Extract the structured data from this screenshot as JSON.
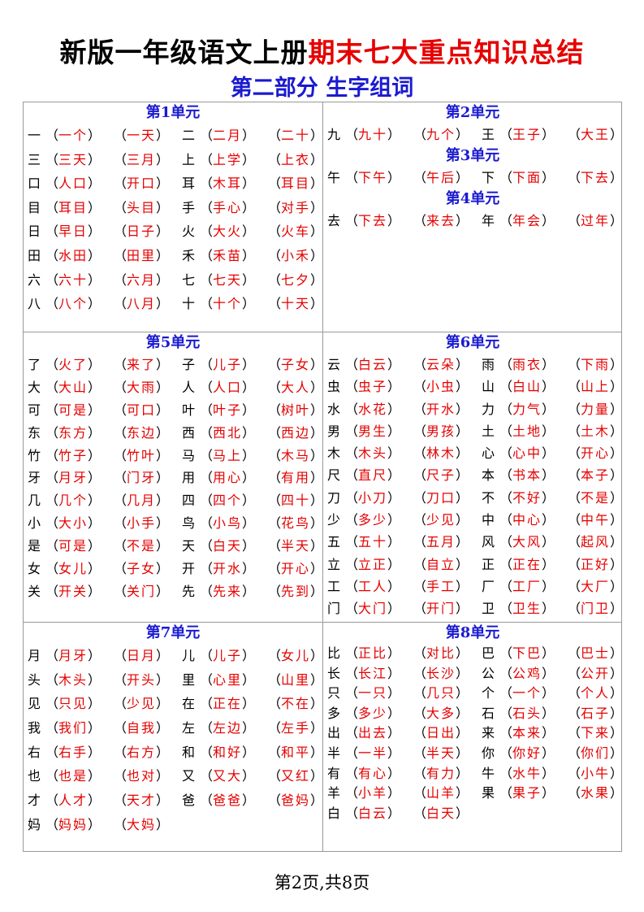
{
  "header": {
    "title_black": "新版一年级语文上册",
    "title_red": "期末七大重点知识总结",
    "subtitle": "第二部分 生字组词"
  },
  "units": [
    {
      "title": "第1单元",
      "entries": [
        {
          "c": "一",
          "w": [
            "一个",
            "一天"
          ]
        },
        {
          "c": "二",
          "w": [
            "二月",
            "二十"
          ]
        },
        {
          "c": "三",
          "w": [
            "三天",
            "三月"
          ]
        },
        {
          "c": "上",
          "w": [
            "上学",
            "上衣"
          ]
        },
        {
          "c": "口",
          "w": [
            "人口",
            "开口"
          ]
        },
        {
          "c": "耳",
          "w": [
            "木耳",
            "耳目"
          ]
        },
        {
          "c": "目",
          "w": [
            "耳目",
            "头目"
          ]
        },
        {
          "c": "手",
          "w": [
            "手心",
            "对手"
          ]
        },
        {
          "c": "日",
          "w": [
            "早日",
            "日子"
          ]
        },
        {
          "c": "火",
          "w": [
            "大火",
            "火车"
          ]
        },
        {
          "c": "田",
          "w": [
            "水田",
            "田里"
          ]
        },
        {
          "c": "禾",
          "w": [
            "禾苗",
            "小禾"
          ]
        },
        {
          "c": "六",
          "w": [
            "六十",
            "六月"
          ]
        },
        {
          "c": "七",
          "w": [
            "七天",
            "七夕"
          ]
        },
        {
          "c": "八",
          "w": [
            "八个",
            "八月"
          ]
        },
        {
          "c": "十",
          "w": [
            "十个",
            "十天"
          ]
        }
      ]
    },
    {
      "title": "第2单元",
      "entries": [
        {
          "c": "九",
          "w": [
            "九十",
            "九个"
          ]
        },
        {
          "c": "王",
          "w": [
            "王子",
            "大王"
          ]
        }
      ]
    },
    {
      "title": "第3单元",
      "entries": [
        {
          "c": "午",
          "w": [
            "下午",
            "午后"
          ]
        },
        {
          "c": "下",
          "w": [
            "下面",
            "下去"
          ]
        }
      ]
    },
    {
      "title": "第4单元",
      "entries": [
        {
          "c": "去",
          "w": [
            "下去",
            "来去"
          ]
        },
        {
          "c": "年",
          "w": [
            "年会",
            "过年"
          ]
        }
      ]
    },
    {
      "title": "第5单元",
      "entries": [
        {
          "c": "了",
          "w": [
            "火了",
            "来了"
          ]
        },
        {
          "c": "子",
          "w": [
            "儿子",
            "子女"
          ]
        },
        {
          "c": "大",
          "w": [
            "大山",
            "大雨"
          ]
        },
        {
          "c": "人",
          "w": [
            "人口",
            "大人"
          ]
        },
        {
          "c": "可",
          "w": [
            "可是",
            "可口"
          ]
        },
        {
          "c": "叶",
          "w": [
            "叶子",
            "树叶"
          ]
        },
        {
          "c": "东",
          "w": [
            "东方",
            "东边"
          ]
        },
        {
          "c": "西",
          "w": [
            "西北",
            "西边"
          ]
        },
        {
          "c": "竹",
          "w": [
            "竹子",
            "竹叶"
          ]
        },
        {
          "c": "马",
          "w": [
            "马上",
            "木马"
          ]
        },
        {
          "c": "牙",
          "w": [
            "月牙",
            "门牙"
          ]
        },
        {
          "c": "用",
          "w": [
            "用心",
            "有用"
          ]
        },
        {
          "c": "几",
          "w": [
            "几个",
            "几月"
          ]
        },
        {
          "c": "四",
          "w": [
            "四个",
            "四十"
          ]
        },
        {
          "c": "小",
          "w": [
            "大小",
            "小手"
          ]
        },
        {
          "c": "鸟",
          "w": [
            "小鸟",
            "花鸟"
          ]
        },
        {
          "c": "是",
          "w": [
            "可是",
            "不是"
          ]
        },
        {
          "c": "天",
          "w": [
            "白天",
            "半天"
          ]
        },
        {
          "c": "女",
          "w": [
            "女儿",
            "子女"
          ]
        },
        {
          "c": "开",
          "w": [
            "开水",
            "开心"
          ]
        },
        {
          "c": "关",
          "w": [
            "开关",
            "关门"
          ]
        },
        {
          "c": "先",
          "w": [
            "先来",
            "先到"
          ]
        }
      ]
    },
    {
      "title": "第6单元",
      "entries": [
        {
          "c": "云",
          "w": [
            "白云",
            "云朵"
          ]
        },
        {
          "c": "雨",
          "w": [
            "雨衣",
            "下雨"
          ]
        },
        {
          "c": "虫",
          "w": [
            "虫子",
            "小虫"
          ]
        },
        {
          "c": "山",
          "w": [
            "白山",
            "山上"
          ]
        },
        {
          "c": "水",
          "w": [
            "水花",
            "开水"
          ]
        },
        {
          "c": "力",
          "w": [
            "力气",
            "力量"
          ]
        },
        {
          "c": "男",
          "w": [
            "男生",
            "男孩"
          ]
        },
        {
          "c": "土",
          "w": [
            "土地",
            "土木"
          ]
        },
        {
          "c": "木",
          "w": [
            "木头",
            "林木"
          ]
        },
        {
          "c": "心",
          "w": [
            "心中",
            "开心"
          ]
        },
        {
          "c": "尺",
          "w": [
            "直尺",
            "尺子"
          ]
        },
        {
          "c": "本",
          "w": [
            "书本",
            "本子"
          ]
        },
        {
          "c": "刀",
          "w": [
            "小刀",
            "刀口"
          ]
        },
        {
          "c": "不",
          "w": [
            "不好",
            "不是"
          ]
        },
        {
          "c": "少",
          "w": [
            "多少",
            "少见"
          ]
        },
        {
          "c": "中",
          "w": [
            "中心",
            "中午"
          ]
        },
        {
          "c": "五",
          "w": [
            "五十",
            "五月"
          ]
        },
        {
          "c": "风",
          "w": [
            "大风",
            "起风"
          ]
        },
        {
          "c": "立",
          "w": [
            "立正",
            "自立"
          ]
        },
        {
          "c": "正",
          "w": [
            "正在",
            "正好"
          ]
        },
        {
          "c": "工",
          "w": [
            "工人",
            "手工"
          ]
        },
        {
          "c": "厂",
          "w": [
            "工厂",
            "大厂"
          ]
        },
        {
          "c": "门",
          "w": [
            "大门",
            "开门"
          ]
        },
        {
          "c": "卫",
          "w": [
            "卫生",
            "门卫"
          ]
        }
      ]
    },
    {
      "title": "第7单元",
      "entries": [
        {
          "c": "月",
          "w": [
            "月牙",
            "日月"
          ]
        },
        {
          "c": "儿",
          "w": [
            "儿子",
            "女儿"
          ]
        },
        {
          "c": "头",
          "w": [
            "木头",
            "开头"
          ]
        },
        {
          "c": "里",
          "w": [
            "心里",
            "山里"
          ]
        },
        {
          "c": "见",
          "w": [
            "只见",
            "少见"
          ]
        },
        {
          "c": "在",
          "w": [
            "正在",
            "不在"
          ]
        },
        {
          "c": "我",
          "w": [
            "我们",
            "自我"
          ]
        },
        {
          "c": "左",
          "w": [
            "左边",
            "左手"
          ]
        },
        {
          "c": "右",
          "w": [
            "右手",
            "右方"
          ]
        },
        {
          "c": "和",
          "w": [
            "和好",
            "和平"
          ]
        },
        {
          "c": "也",
          "w": [
            "也是",
            "也对"
          ]
        },
        {
          "c": "又",
          "w": [
            "又大",
            "又红"
          ]
        },
        {
          "c": "才",
          "w": [
            "人才",
            "天才"
          ]
        },
        {
          "c": "爸",
          "w": [
            "爸爸",
            "爸妈"
          ]
        },
        {
          "c": "妈",
          "w": [
            "妈妈",
            "大妈"
          ]
        }
      ]
    },
    {
      "title": "第8单元",
      "entries": [
        {
          "c": "比",
          "w": [
            "正比",
            "对比"
          ]
        },
        {
          "c": "巴",
          "w": [
            "下巴",
            "巴士"
          ]
        },
        {
          "c": "长",
          "w": [
            "长江",
            "长沙"
          ]
        },
        {
          "c": "公",
          "w": [
            "公鸡",
            "公开"
          ]
        },
        {
          "c": "只",
          "w": [
            "一只",
            "几只"
          ]
        },
        {
          "c": "个",
          "w": [
            "一个",
            "个人"
          ]
        },
        {
          "c": "多",
          "w": [
            "多少",
            "大多"
          ]
        },
        {
          "c": "石",
          "w": [
            "石头",
            "石子"
          ]
        },
        {
          "c": "出",
          "w": [
            "出去",
            "日出"
          ]
        },
        {
          "c": "来",
          "w": [
            "本来",
            "下来"
          ]
        },
        {
          "c": "半",
          "w": [
            "一半",
            "半天"
          ]
        },
        {
          "c": "你",
          "w": [
            "你好",
            "你们"
          ]
        },
        {
          "c": "有",
          "w": [
            "有心",
            "有力"
          ]
        },
        {
          "c": "牛",
          "w": [
            "水牛",
            "小牛"
          ]
        },
        {
          "c": "羊",
          "w": [
            "小羊",
            "山羊"
          ]
        },
        {
          "c": "果",
          "w": [
            "果子",
            "水果"
          ]
        },
        {
          "c": "白",
          "w": [
            "白云",
            "白天"
          ]
        }
      ]
    }
  ],
  "footer": {
    "page": "第2页,共8页"
  },
  "colors": {
    "title_red": "#e60000",
    "unit_blue": "#1a1ad0",
    "word_red": "#e60000"
  }
}
